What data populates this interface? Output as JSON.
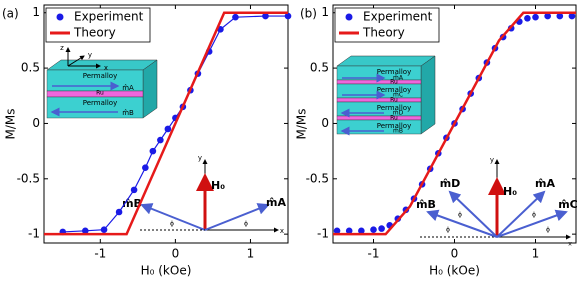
{
  "chart_data": [
    {
      "type": "line",
      "panel": "(a)",
      "xlabel": "H₀ (kOe)",
      "ylabel": "M/Ms",
      "xlim": [
        -1.75,
        1.5
      ],
      "ylim": [
        -1.08,
        1.07
      ],
      "xticks": [
        -1,
        0,
        1
      ],
      "yticks": [
        -1,
        -0.5,
        0,
        0.5,
        1
      ],
      "series": [
        {
          "name": "Experiment",
          "color": "#1a1ae6",
          "marker": true,
          "line": true,
          "x": [
            -1.5,
            -1.2,
            -0.95,
            -0.75,
            -0.55,
            -0.4,
            -0.3,
            -0.2,
            -0.1,
            0,
            0.1,
            0.2,
            0.3,
            0.45,
            0.6,
            0.8,
            1.2,
            1.5
          ],
          "values": [
            -0.98,
            -0.97,
            -0.96,
            -0.8,
            -0.6,
            -0.4,
            -0.25,
            -0.15,
            -0.05,
            0.05,
            0.15,
            0.3,
            0.45,
            0.65,
            0.85,
            0.96,
            0.97,
            0.97
          ]
        },
        {
          "name": "Theory",
          "color": "#e61a1a",
          "marker": false,
          "line": true,
          "x": [
            -1.75,
            -0.65,
            0.65,
            1.5
          ],
          "values": [
            -1,
            -1,
            1,
            1
          ]
        }
      ],
      "annotations": [
        "z",
        "y",
        "x",
        "Permalloy",
        "Ru",
        "Permalloy",
        "m̂A",
        "m̂B",
        "y",
        "H₀",
        "x",
        "m̂B",
        "m̂A",
        "ϕ",
        "ϕ"
      ]
    },
    {
      "type": "line",
      "panel": "(b)",
      "xlabel": "H₀ (kOe)",
      "ylabel": "M/Ms",
      "xlim": [
        -1.5,
        1.5
      ],
      "ylim": [
        -1.08,
        1.07
      ],
      "xticks": [
        -1,
        0,
        1
      ],
      "yticks": [
        -1,
        -0.5,
        0,
        0.5,
        1
      ],
      "series": [
        {
          "name": "Experiment",
          "color": "#1a1ae6",
          "marker": true,
          "line": false,
          "x": [
            -1.45,
            -1.3,
            -1.15,
            -1.0,
            -0.9,
            -0.8,
            -0.7,
            -0.6,
            -0.5,
            -0.4,
            -0.3,
            -0.2,
            -0.1,
            0,
            0.1,
            0.2,
            0.3,
            0.4,
            0.5,
            0.6,
            0.7,
            0.8,
            0.9,
            1.0,
            1.15,
            1.3,
            1.45
          ],
          "values": [
            -0.97,
            -0.97,
            -0.97,
            -0.96,
            -0.95,
            -0.92,
            -0.86,
            -0.78,
            -0.68,
            -0.55,
            -0.41,
            -0.27,
            -0.13,
            0,
            0.13,
            0.27,
            0.41,
            0.55,
            0.68,
            0.78,
            0.86,
            0.92,
            0.95,
            0.96,
            0.97,
            0.97,
            0.97
          ]
        },
        {
          "name": "Theory",
          "color": "#e61a1a",
          "marker": false,
          "line": true,
          "x": [
            -1.5,
            -0.85,
            -0.55,
            0.55,
            0.85,
            1.5
          ],
          "values": [
            -1,
            -1,
            -0.75,
            0.75,
            1,
            1
          ]
        }
      ],
      "annotations": [
        "Permalloy",
        "Ru",
        "Permalloy",
        "Ru",
        "Permalloy",
        "Ru",
        "Permalloy",
        "m̂A",
        "m̂B",
        "m̂C",
        "m̂D",
        "y",
        "H₀",
        "x",
        "m̂D",
        "m̂B",
        "m̂A",
        "m̂C",
        "ϕ",
        "ϕ",
        "ϕ",
        "ϕ"
      ]
    }
  ]
}
